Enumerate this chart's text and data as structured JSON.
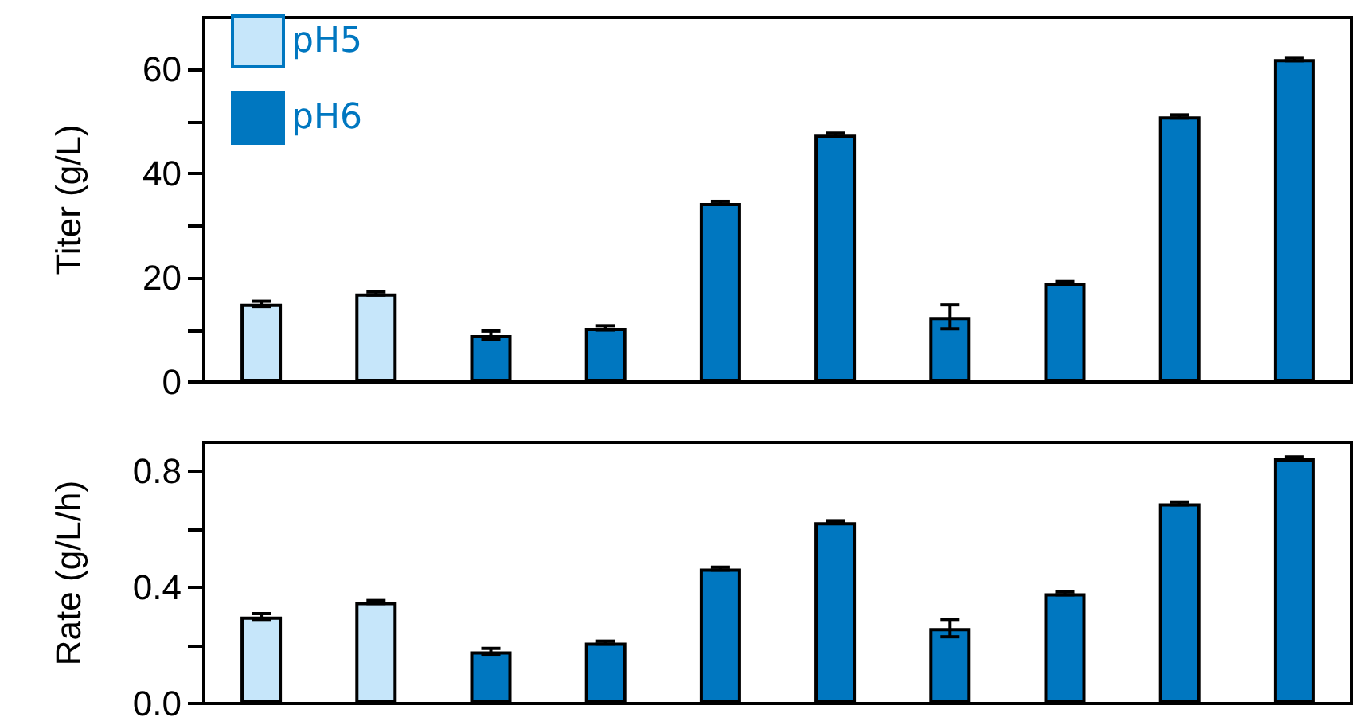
{
  "chart_data": [
    {
      "type": "bar",
      "ylabel": "Titer (g/L)",
      "categories": [
        null,
        null,
        null,
        null,
        null,
        null,
        null,
        null,
        null,
        null
      ],
      "series": [
        {
          "name": "pH5",
          "color": "#c6e6fa",
          "values": [
            15,
            17,
            null,
            null,
            null,
            null,
            null,
            null,
            null,
            null
          ],
          "errors": [
            0.5,
            0.3,
            null,
            null,
            null,
            null,
            null,
            null,
            null,
            null
          ]
        },
        {
          "name": "pH6",
          "color": "#0077c0",
          "values": [
            null,
            null,
            9,
            10.4,
            34.4,
            47.5,
            12.5,
            19,
            51,
            62
          ],
          "errors": [
            null,
            null,
            0.8,
            0.4,
            0.3,
            0.3,
            2.3,
            0.3,
            0.3,
            0.3
          ]
        }
      ],
      "ylim": [
        0,
        70
      ],
      "yticks": [
        0,
        {
          "value": 10,
          "label": null
        },
        20,
        {
          "value": 30,
          "label": null
        },
        40,
        {
          "value": 50,
          "label": null
        },
        60
      ],
      "stacked": true,
      "grid": false,
      "legend": "top left",
      "tick_labels": "y"
    },
    {
      "type": "bar",
      "ylabel": "Rate (g/L/h)",
      "categories": [
        null,
        null,
        null,
        null,
        null,
        null,
        null,
        null,
        null,
        null
      ],
      "series": [
        {
          "color": "#c6e6fa",
          "values": [
            0.3,
            0.35,
            null,
            null,
            null,
            null,
            null,
            null,
            null,
            null
          ],
          "errors": [
            0.01,
            0.005,
            null,
            null,
            null,
            null,
            null,
            null,
            null,
            null
          ]
        },
        {
          "color": "#0077c0",
          "values": [
            null,
            null,
            0.18,
            0.21,
            0.465,
            0.625,
            0.26,
            0.38,
            0.69,
            0.845
          ],
          "errors": [
            null,
            null,
            0.01,
            0.005,
            0.005,
            0.005,
            0.03,
            0.005,
            0.005,
            0.005
          ]
        }
      ],
      "ylim": [
        0,
        0.9
      ],
      "yticks": [
        {
          "value": 0,
          "label": "0.0"
        },
        {
          "value": 0.2,
          "label": null
        },
        0.4,
        {
          "value": 0.6,
          "label": null
        },
        0.8
      ],
      "stacked": true,
      "grid": false,
      "legend": false,
      "tick_labels": "y"
    }
  ]
}
